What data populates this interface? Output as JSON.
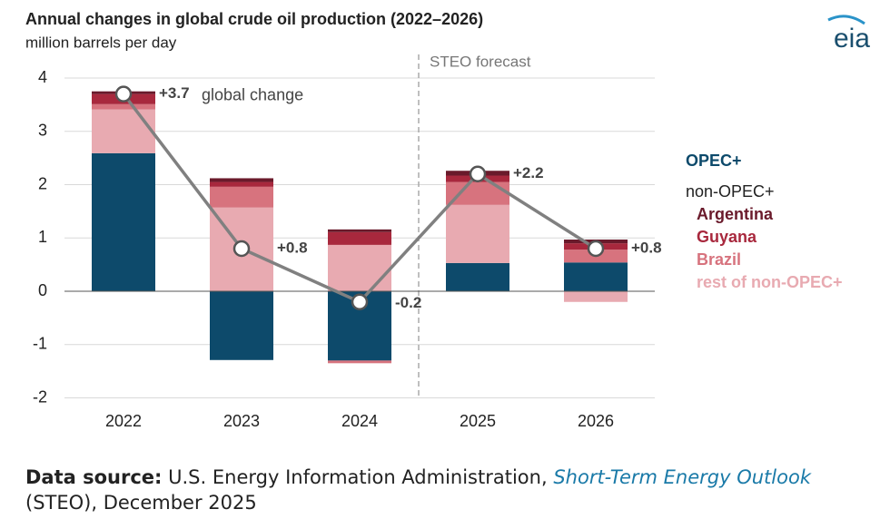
{
  "logo": "eia",
  "chart_data": {
    "type": "bar",
    "title": "Annual changes in global crude oil production (2022–2026)",
    "subtitle": "million barrels per day",
    "categories": [
      "2022",
      "2023",
      "2024",
      "2025",
      "2026"
    ],
    "series": [
      {
        "name": "OPEC+",
        "color": "#0d4a6b",
        "values": [
          2.59,
          -1.29,
          -1.3,
          0.53,
          0.54
        ]
      },
      {
        "name": "rest of non-OPEC+",
        "color": "#e8aab1",
        "values": [
          0.82,
          1.57,
          0.87,
          1.09,
          -0.2
        ]
      },
      {
        "name": "Brazil",
        "color": "#d7737e",
        "values": [
          0.1,
          0.39,
          -0.05,
          0.43,
          0.24
        ]
      },
      {
        "name": "Guyana",
        "color": "#a8283d",
        "values": [
          0.19,
          0.09,
          0.24,
          0.12,
          0.12
        ]
      },
      {
        "name": "Argentina",
        "color": "#6a1a2b",
        "values": [
          0.05,
          0.07,
          0.05,
          0.09,
          0.07
        ]
      }
    ],
    "line": {
      "label": "global change",
      "color": "#808080",
      "values": [
        3.7,
        0.8,
        -0.2,
        2.2,
        0.8
      ],
      "value_labels": [
        "+3.7",
        "+0.8",
        "-0.2",
        "+2.2",
        "+0.8"
      ]
    },
    "legend_heading": "non-OPEC+",
    "forecast_label": "STEO forecast",
    "ylim": [
      -2,
      4
    ],
    "yticks": [
      -2,
      -1,
      0,
      1,
      2,
      3,
      4
    ],
    "grid": true
  },
  "source": {
    "label": "Data source:",
    "text": "U.S. Energy Information Administration,",
    "link": "Short-Term Energy Outlook",
    "tail": "(STEO), December 2025"
  }
}
